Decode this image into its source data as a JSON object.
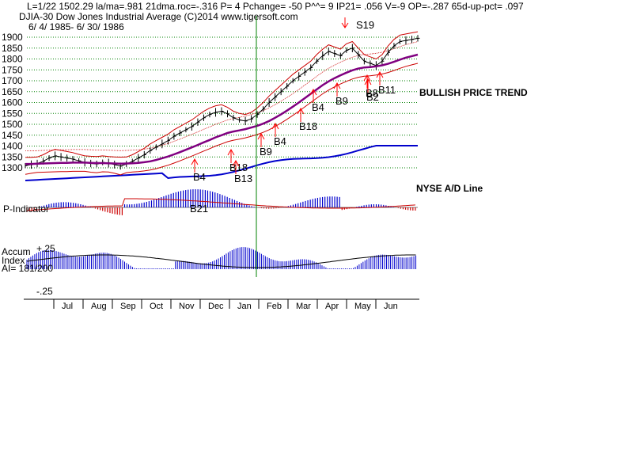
{
  "header": {
    "line1": "L=1/22   1502.29   la/ma=.981  21dma.roc=-.316  P=   4  Pchange=  -50  P^^=  9  IP21= .056  V=-9  OP=-.287  65d-up-pct= .097",
    "line2": "DJIA-30   Dow Jones Industrial Average   (C)2014 www.tigersoft.com",
    "line3": "6/ 4/ 1985-  6/ 30/ 1986"
  },
  "annotations": {
    "trend": "BULLISH PRICE TREND",
    "ad_line": "NYSE A/D Line",
    "p_indicator": "P-Indicator",
    "accum_title": "Accum",
    "accum_index": "Index",
    "ai": "AI= 181/200",
    "accum_top": "+.25",
    "accum_bottom": "-.25"
  },
  "colors": {
    "price": "#000000",
    "ma": "#800080",
    "bands": "#cc0000",
    "ad_line": "#0000cc",
    "indicator_pos": "#0000cc",
    "indicator_neg": "#cc0000",
    "signal_arrow": "#ff0000",
    "cursor": "#008000",
    "grid": "#008000"
  },
  "chart_data": {
    "type": "line",
    "title": "DJIA-30 Dow Jones Industrial Average",
    "x_range": [
      "1985-06-04",
      "1986-06-30"
    ],
    "months": [
      "Jul",
      "Aug",
      "Sep",
      "Oct",
      "Nov",
      "Dec",
      "Jan",
      "Feb",
      "Mar",
      "Apr",
      "May",
      "Jun"
    ],
    "y_ticks": [
      1300,
      1350,
      1400,
      1450,
      1500,
      1550,
      1600,
      1650,
      1700,
      1750,
      1800,
      1850,
      1900
    ],
    "ylim": [
      1280,
      1930
    ],
    "price_series": {
      "values": [
        1310,
        1315,
        1320,
        1330,
        1345,
        1355,
        1350,
        1345,
        1340,
        1332,
        1325,
        1320,
        1318,
        1325,
        1322,
        1315,
        1308,
        1318,
        1330,
        1345,
        1360,
        1380,
        1395,
        1410,
        1425,
        1445,
        1460,
        1475,
        1490,
        1510,
        1530,
        1545,
        1555,
        1560,
        1548,
        1530,
        1520,
        1515,
        1525,
        1545,
        1570,
        1600,
        1625,
        1650,
        1675,
        1700,
        1720,
        1740,
        1760,
        1790,
        1815,
        1835,
        1825,
        1815,
        1840,
        1850,
        1820,
        1790,
        1780,
        1770,
        1790,
        1830,
        1860,
        1880,
        1885,
        1890,
        1895
      ]
    },
    "ma_series": {
      "values": [
        1318,
        1318,
        1319,
        1320,
        1321,
        1322,
        1323,
        1323,
        1324,
        1324,
        1324,
        1323,
        1322,
        1322,
        1321,
        1320,
        1319,
        1320,
        1321,
        1323,
        1326,
        1330,
        1336,
        1344,
        1352,
        1362,
        1372,
        1383,
        1394,
        1405,
        1417,
        1428,
        1440,
        1450,
        1460,
        1467,
        1472,
        1478,
        1485,
        1493,
        1503,
        1515,
        1530,
        1546,
        1563,
        1581,
        1600,
        1620,
        1640,
        1660,
        1680,
        1697,
        1712,
        1725,
        1737,
        1748,
        1756,
        1761,
        1763,
        1766,
        1771,
        1778,
        1787,
        1797,
        1806,
        1813,
        1820
      ]
    },
    "signals": [
      {
        "label": "B4",
        "x": "1985-11-05",
        "price": 1365
      },
      {
        "label": "B18",
        "x": "1985-11-22",
        "price": 1440
      },
      {
        "label": "B13",
        "x": "1985-12-05",
        "price": 1470
      },
      {
        "label": "B21",
        "x": "1985-11-01",
        "price": 0
      },
      {
        "label": "B9",
        "x": "1986-01-22",
        "price": 1502
      },
      {
        "label": "B4",
        "x": "1986-02-03",
        "price": 1545
      },
      {
        "label": "B18",
        "x": "1986-02-18",
        "price": 1620
      },
      {
        "label": "B4",
        "x": "1986-03-05",
        "price": 1710
      },
      {
        "label": "B9",
        "x": "1986-03-24",
        "price": 1750
      },
      {
        "label": "B8",
        "x": "1986-04-24",
        "price": 1775
      },
      {
        "label": "B2",
        "x": "1986-04-30",
        "price": 1768
      },
      {
        "label": "B11",
        "x": "1986-05-02",
        "price": 1780
      },
      {
        "label": "S19",
        "x": "1986-04-21",
        "price": 1890
      }
    ]
  }
}
